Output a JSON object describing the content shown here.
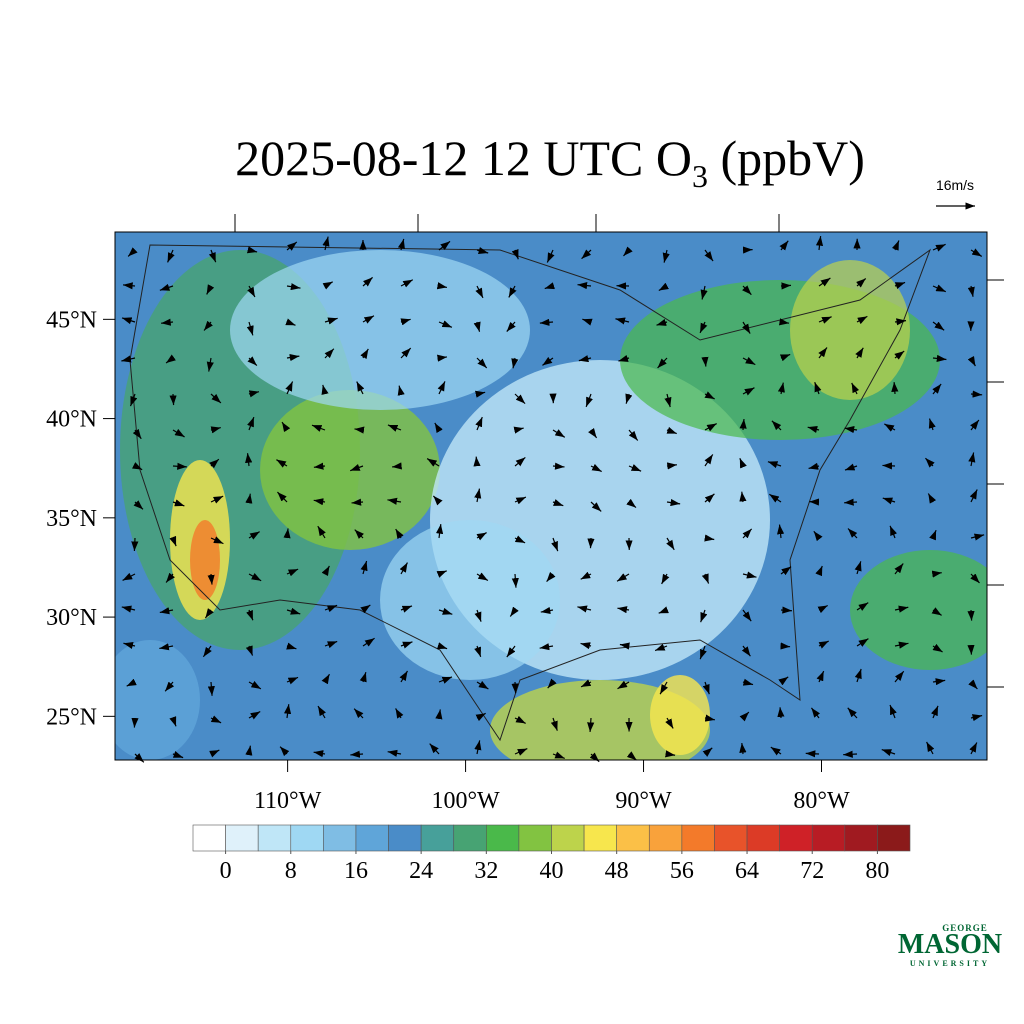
{
  "title": {
    "main": "2025-08-12 12 UTC O",
    "subscript": "3",
    "unit": " (ppbV)"
  },
  "map": {
    "latlim": [
      22.8,
      49.4
    ],
    "lonlim": [
      -119.7,
      -70.7
    ],
    "lat_ticks": [
      {
        "value": 45,
        "label": "45°N"
      },
      {
        "value": 40,
        "label": "40°N"
      },
      {
        "value": 35,
        "label": "35°N"
      },
      {
        "value": 30,
        "label": "30°N"
      },
      {
        "value": 25,
        "label": "25°N"
      }
    ],
    "lon_ticks": [
      {
        "value": -110,
        "label": "110°W"
      },
      {
        "value": -100,
        "label": "100°W"
      },
      {
        "value": -90,
        "label": "90°W"
      },
      {
        "value": -80,
        "label": "80°W"
      }
    ]
  },
  "vector_key": "16m/s",
  "colorbar": {
    "lim": [
      -4,
      84
    ],
    "step": 4,
    "colors": [
      "#ffffff",
      "#dff1fa",
      "#bfe6f7",
      "#9fd8f3",
      "#7fbde4",
      "#5fa5d9",
      "#4a8cc8",
      "#47a09a",
      "#47a373",
      "#4ab94a",
      "#82c341",
      "#bdd34b",
      "#f7e64d",
      "#fbc047",
      "#f9a23b",
      "#f37a2a",
      "#e8532a",
      "#dc3b26",
      "#cf2127",
      "#b81c24",
      "#a01a20",
      "#8b1a1a"
    ],
    "ticks": [
      0,
      8,
      16,
      24,
      32,
      40,
      48,
      56,
      64,
      72,
      80
    ]
  },
  "logo": {
    "top": "GEORGE",
    "name": "MASON",
    "bottom": "UNIVERSITY"
  }
}
